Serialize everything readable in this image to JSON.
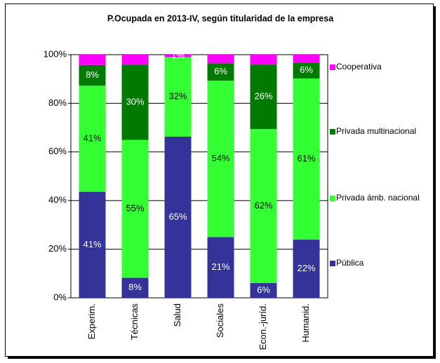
{
  "chart_data": {
    "type": "bar",
    "stacked": "percent",
    "title": "P.Ocupada en 2013-IV, según titularidad de la empresa",
    "categories": [
      "Experim.",
      "Técnicas",
      "Salud",
      "Sociales",
      "Econ.-juríd.",
      "Humanid."
    ],
    "series": [
      {
        "name": "Pública",
        "color": "#333399",
        "label_color": "#ffffff",
        "values": [
          41,
          8,
          65,
          21,
          6,
          22
        ],
        "value_labels": [
          "41%",
          "8%",
          "65%",
          "21%",
          "6%",
          "22%"
        ]
      },
      {
        "name": "Privada ámb. nacional",
        "color": "#33ff33",
        "label_color": "#000000",
        "values": [
          41,
          55,
          32,
          54,
          62,
          61
        ],
        "value_labels": [
          "41%",
          "55%",
          "32%",
          "54%",
          "62%",
          "61%"
        ]
      },
      {
        "name": "Privada multinacional",
        "color": "#007a00",
        "label_color": "#ffffff",
        "values": [
          8,
          30,
          0,
          6,
          26,
          6
        ],
        "value_labels": [
          "8%",
          "30%",
          null,
          "6%",
          "26%",
          "6%"
        ]
      },
      {
        "name": "Cooperativa",
        "color": "#ff00ff",
        "label_color": "#ffffff",
        "values": [
          4,
          4,
          1,
          3,
          4,
          3
        ],
        "value_labels": [
          null,
          null,
          "1%",
          null,
          null,
          null
        ]
      }
    ],
    "ylim": [
      0,
      100
    ],
    "yticks": [
      {
        "value": 0,
        "label": "0%"
      },
      {
        "value": 20,
        "label": "20%"
      },
      {
        "value": 40,
        "label": "40%"
      },
      {
        "value": 60,
        "label": "60%"
      },
      {
        "value": 80,
        "label": "80%"
      },
      {
        "value": 100,
        "label": "100%"
      }
    ],
    "grid": true,
    "legend": "right"
  }
}
